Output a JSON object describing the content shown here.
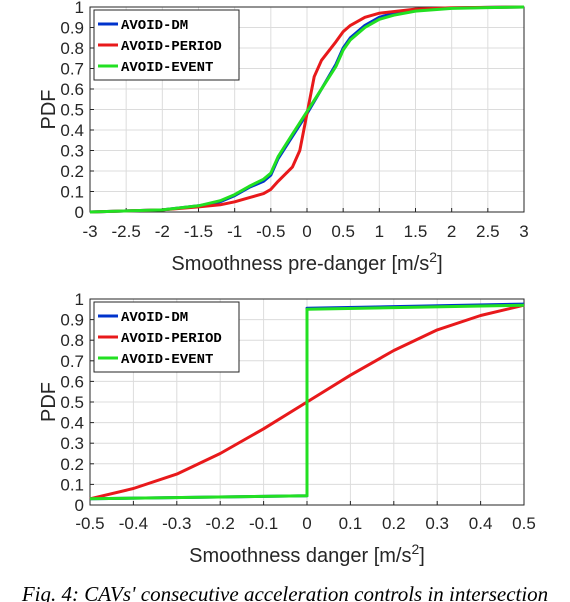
{
  "caption": "Fig. 4: CAVs' consecutive acceleration controls in intersection",
  "chart_data": [
    {
      "type": "line",
      "xlabel": "Smoothness pre-danger [m/s",
      "xlabel_sup": "2",
      "xlabel_end": "]",
      "ylabel": "PDF",
      "xlim": [
        -3,
        3
      ],
      "ylim": [
        0,
        1
      ],
      "xticks": [
        "-3",
        "-2.5",
        "-2",
        "-1.5",
        "-1",
        "-0.5",
        "0",
        "0.5",
        "1",
        "1.5",
        "2",
        "2.5",
        "3"
      ],
      "yticks": [
        "0",
        "0.1",
        "0.2",
        "0.3",
        "0.4",
        "0.5",
        "0.6",
        "0.7",
        "0.8",
        "0.9",
        "1"
      ],
      "grid": true,
      "legend_position": "top-left",
      "series": [
        {
          "name": "AVOID-DM",
          "color": "#0033cc",
          "x": [
            -3,
            -2,
            -1.5,
            -1.2,
            -1,
            -0.8,
            -0.6,
            -0.5,
            -0.4,
            -0.2,
            0,
            0.2,
            0.4,
            0.5,
            0.6,
            0.8,
            1,
            1.2,
            1.5,
            2,
            2.5,
            3
          ],
          "y": [
            0.0,
            0.01,
            0.03,
            0.05,
            0.08,
            0.12,
            0.15,
            0.18,
            0.26,
            0.37,
            0.48,
            0.6,
            0.72,
            0.8,
            0.85,
            0.91,
            0.95,
            0.97,
            0.985,
            0.995,
            0.998,
            1.0
          ]
        },
        {
          "name": "AVOID-PERIOD",
          "color": "#e8191b",
          "x": [
            -3,
            -2,
            -1.5,
            -1.2,
            -1,
            -0.8,
            -0.6,
            -0.5,
            -0.4,
            -0.2,
            -0.1,
            0,
            0.1,
            0.2,
            0.4,
            0.5,
            0.6,
            0.8,
            1,
            1.5,
            2,
            3
          ],
          "y": [
            0.0,
            0.01,
            0.025,
            0.035,
            0.05,
            0.07,
            0.09,
            0.11,
            0.15,
            0.22,
            0.3,
            0.48,
            0.66,
            0.74,
            0.83,
            0.88,
            0.91,
            0.95,
            0.97,
            0.99,
            0.996,
            1.0
          ]
        },
        {
          "name": "AVOID-EVENT",
          "color": "#22e022",
          "x": [
            -3,
            -2,
            -1.5,
            -1.2,
            -1,
            -0.8,
            -0.6,
            -0.5,
            -0.4,
            -0.2,
            0,
            0.2,
            0.4,
            0.5,
            0.6,
            0.8,
            1,
            1.2,
            1.5,
            2,
            2.5,
            3
          ],
          "y": [
            0.0,
            0.01,
            0.03,
            0.055,
            0.085,
            0.125,
            0.16,
            0.19,
            0.27,
            0.38,
            0.49,
            0.6,
            0.71,
            0.79,
            0.84,
            0.9,
            0.94,
            0.96,
            0.98,
            0.993,
            0.997,
            1.0
          ]
        }
      ]
    },
    {
      "type": "line",
      "xlabel": "Smoothness danger [m/s",
      "xlabel_sup": "2",
      "xlabel_end": "]",
      "ylabel": "PDF",
      "xlim": [
        -0.5,
        0.5
      ],
      "ylim": [
        0,
        1
      ],
      "xticks": [
        "-0.5",
        "-0.4",
        "-0.3",
        "-0.2",
        "-0.1",
        "0",
        "0.1",
        "0.2",
        "0.3",
        "0.4",
        "0.5"
      ],
      "yticks": [
        "0",
        "0.1",
        "0.2",
        "0.3",
        "0.4",
        "0.5",
        "0.6",
        "0.7",
        "0.8",
        "0.9",
        "1"
      ],
      "grid": true,
      "legend_position": "top-left",
      "series": [
        {
          "name": "AVOID-DM",
          "color": "#0033cc",
          "x": [
            -0.5,
            0,
            0,
            0.5
          ],
          "y": [
            0.03,
            0.045,
            0.955,
            0.975
          ]
        },
        {
          "name": "AVOID-PERIOD",
          "color": "#e8191b",
          "x": [
            -0.5,
            -0.4,
            -0.3,
            -0.2,
            -0.1,
            0,
            0.1,
            0.2,
            0.3,
            0.4,
            0.5
          ],
          "y": [
            0.03,
            0.08,
            0.15,
            0.25,
            0.37,
            0.5,
            0.63,
            0.75,
            0.85,
            0.92,
            0.97
          ]
        },
        {
          "name": "AVOID-EVENT",
          "color": "#22e022",
          "x": [
            -0.5,
            0,
            0,
            0.5
          ],
          "y": [
            0.03,
            0.045,
            0.95,
            0.97
          ]
        }
      ]
    }
  ]
}
